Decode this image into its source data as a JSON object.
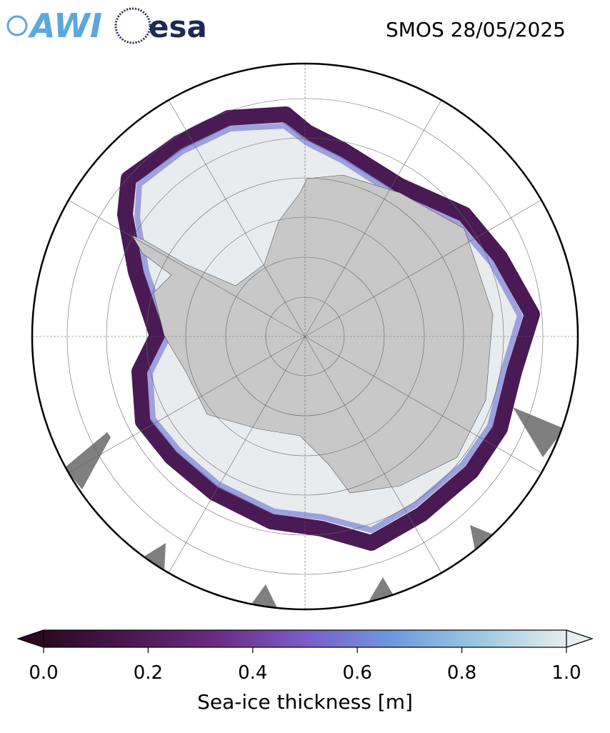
{
  "header": {
    "logos": [
      "AWI",
      "esa"
    ],
    "title": "SMOS 28/05/2025"
  },
  "colorbar": {
    "label": "Sea-ice thickness [m]",
    "lim": [
      0,
      1
    ],
    "ticks": [
      {
        "value": 0,
        "label": "0.0"
      },
      {
        "value": 0.2,
        "label": "0.2"
      },
      {
        "value": 0.4,
        "label": "0.4"
      },
      {
        "value": 0.6,
        "label": "0.6"
      },
      {
        "value": 0.8,
        "label": "0.8"
      },
      {
        "value": 1,
        "label": "1.0"
      }
    ],
    "colors": [
      "#2b0a24",
      "#4a1850",
      "#6a2c86",
      "#7a5cc8",
      "#6f98e0",
      "#9cc8e0",
      "#e6eeee"
    ]
  }
}
